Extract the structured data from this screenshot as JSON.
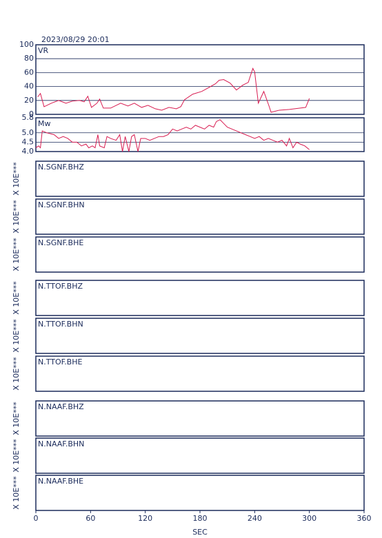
{
  "title": "2023/08/29 20:01",
  "x_axis": {
    "xlim": [
      0,
      360
    ],
    "xticks": [
      0,
      60,
      120,
      180,
      240,
      300,
      360
    ],
    "label": "SEC"
  },
  "chart_data": [
    {
      "type": "line",
      "title": "VR",
      "color": "#d81b50",
      "grid": true,
      "ylim": [
        0,
        100
      ],
      "yticks": [
        0,
        20,
        40,
        60,
        80,
        100
      ],
      "x": [
        2,
        5,
        9,
        17,
        25,
        33,
        40,
        48,
        53,
        57,
        61,
        67,
        70,
        74,
        82,
        93,
        101,
        108,
        116,
        123,
        131,
        138,
        146,
        154,
        159,
        163,
        172,
        182,
        189,
        197,
        201,
        206,
        213,
        220,
        227,
        233,
        238,
        240,
        244,
        250,
        256,
        258,
        267,
        278,
        290,
        296,
        300
      ],
      "values": [
        25,
        30,
        11,
        16,
        20,
        16,
        19,
        20,
        18,
        26,
        10,
        16,
        22,
        9,
        9,
        16,
        12,
        16,
        10,
        13,
        8,
        6,
        10,
        8,
        11,
        21,
        29,
        33,
        38,
        44,
        49,
        50,
        45,
        35,
        42,
        46,
        66,
        61,
        16,
        33,
        11,
        3,
        6,
        7,
        9,
        10,
        23
      ]
    },
    {
      "type": "line",
      "title": "Mw",
      "color": "#d81b50",
      "grid": true,
      "ylim": [
        4.0,
        5.8
      ],
      "yticks": [
        {
          "value": 4.0,
          "label": "4.0"
        },
        4.5,
        {
          "value": 5.0,
          "label": "5.0"
        },
        5.8
      ],
      "x": [
        0,
        3,
        5,
        7,
        12,
        20,
        25,
        30,
        35,
        40,
        45,
        50,
        55,
        58,
        62,
        65,
        68,
        70,
        75,
        78,
        82,
        88,
        92,
        95,
        98,
        102,
        105,
        108,
        112,
        115,
        120,
        125,
        130,
        135,
        140,
        145,
        150,
        155,
        160,
        165,
        170,
        175,
        180,
        185,
        190,
        195,
        198,
        202,
        206,
        210,
        215,
        220,
        225,
        230,
        235,
        240,
        245,
        250,
        255,
        260,
        265,
        270,
        275,
        278,
        282,
        286,
        290,
        295,
        300
      ],
      "values": [
        4.2,
        4.3,
        4.2,
        5.1,
        5.0,
        4.9,
        4.7,
        4.8,
        4.7,
        4.5,
        4.5,
        4.3,
        4.4,
        4.2,
        4.3,
        4.2,
        4.9,
        4.3,
        4.2,
        4.8,
        4.7,
        4.6,
        4.9,
        4.0,
        4.8,
        4.0,
        4.8,
        4.9,
        4.0,
        4.7,
        4.7,
        4.6,
        4.7,
        4.8,
        4.8,
        4.9,
        5.2,
        5.1,
        5.2,
        5.3,
        5.2,
        5.4,
        5.3,
        5.2,
        5.4,
        5.3,
        5.6,
        5.7,
        5.5,
        5.3,
        5.2,
        5.1,
        5.0,
        4.9,
        4.8,
        4.7,
        4.8,
        4.6,
        4.7,
        4.6,
        4.5,
        4.6,
        4.3,
        4.7,
        4.2,
        4.5,
        4.4,
        4.3,
        4.1
      ]
    }
  ],
  "waveforms": [
    {
      "label": "N.SGNF.BHZ",
      "ylabel": "X 10E***"
    },
    {
      "label": "N.SGNF.BHN",
      "ylabel": "X 10E***"
    },
    {
      "label": "N.SGNF.BHE",
      "ylabel": "X 10E***"
    },
    {
      "label": "N.TTOF.BHZ",
      "ylabel": "X 10E***"
    },
    {
      "label": "N.TTOF.BHN",
      "ylabel": "X 10E***"
    },
    {
      "label": "N.TTOF.BHE",
      "ylabel": "X 10E***"
    },
    {
      "label": "N.NAAF.BHZ",
      "ylabel": "X 10E***"
    },
    {
      "label": "N.NAAF.BHN",
      "ylabel": "X 10E***"
    },
    {
      "label": "N.NAAF.BHE",
      "ylabel": "X 10E***"
    }
  ]
}
